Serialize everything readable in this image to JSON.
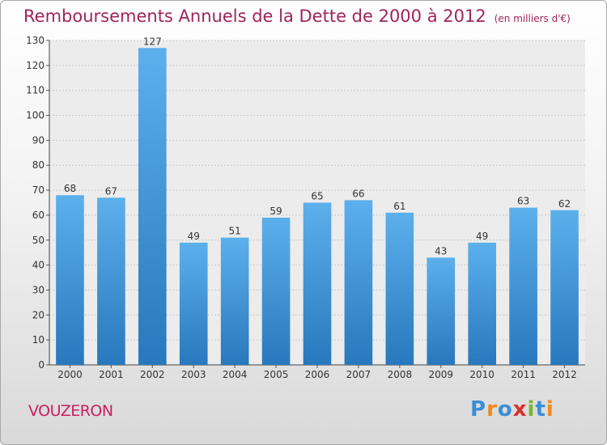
{
  "chart_data": {
    "type": "bar",
    "title": "Remboursements Annuels de la Dette de 2000 à 2012",
    "subtitle": "(en milliers d'€)",
    "categories": [
      "2000",
      "2001",
      "2002",
      "2003",
      "2004",
      "2005",
      "2006",
      "2007",
      "2008",
      "2009",
      "2010",
      "2011",
      "2012"
    ],
    "values": [
      68,
      67,
      127,
      49,
      51,
      59,
      65,
      66,
      61,
      43,
      49,
      63,
      62
    ],
    "ylim": [
      0,
      130
    ],
    "yticks": [
      0,
      10,
      20,
      30,
      40,
      50,
      60,
      70,
      80,
      90,
      100,
      110,
      120,
      130
    ],
    "grid": true,
    "bar_color": "#4a9de0"
  },
  "footer": {
    "commune": "VOUZERON",
    "logo_text": "Proxiti",
    "logo_colors": [
      "#3a8fd6",
      "#f08a1c",
      "#3a8fd6",
      "#d9302a",
      "#7bb52b",
      "#3a8fd6",
      "#f08a1c"
    ]
  }
}
